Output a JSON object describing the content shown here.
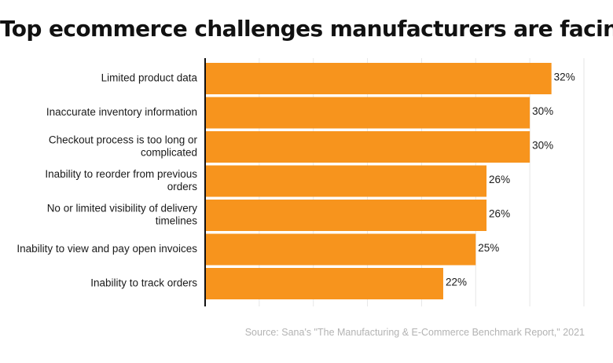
{
  "chart_data": {
    "type": "bar",
    "orientation": "horizontal",
    "title": "Top ecommerce challenges manufacturers are facing",
    "categories": [
      "Limited product data",
      "Inaccurate inventory information",
      "Checkout process is too long or complicated",
      "Inability to reorder from previous orders",
      "No or limited visibility of delivery timelines",
      "Inability to view and pay open invoices",
      "Inability to track orders"
    ],
    "category_lines": [
      [
        "Limited product data"
      ],
      [
        "Inaccurate inventory information"
      ],
      [
        "Checkout process is too long or",
        "complicated"
      ],
      [
        "Inability to reorder from previous",
        "orders"
      ],
      [
        "No or limited visibility of delivery",
        "timelines"
      ],
      [
        "Inability to view and pay open invoices"
      ],
      [
        "Inability to track orders"
      ]
    ],
    "values": [
      32,
      30,
      30,
      26,
      26,
      25,
      22
    ],
    "value_labels": [
      "32%",
      "30%",
      "30%",
      "26%",
      "26%",
      "25%",
      "22%"
    ],
    "xlim": [
      0,
      35
    ],
    "grid": true,
    "xlabel": "",
    "ylabel": "",
    "bar_color": "#f7941d",
    "source": "Source: Sana's \"The Manufacturing & E-Commerce Benchmark Report,\" 2021"
  }
}
